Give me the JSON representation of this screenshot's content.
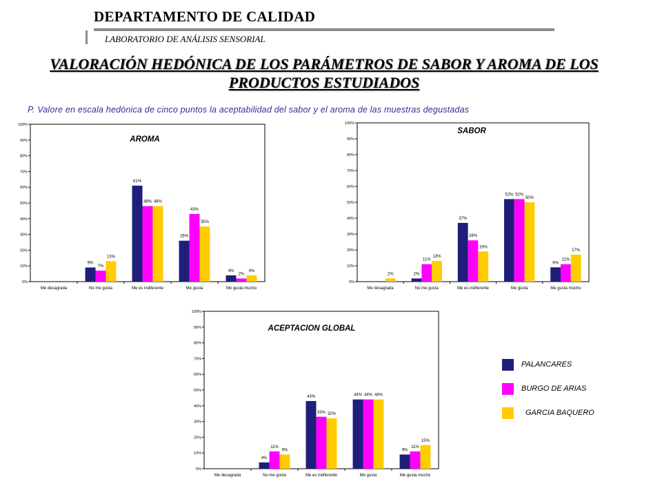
{
  "header": {
    "department": "DEPARTAMENTO DE CALIDAD",
    "laboratory": "LABORATORIO DE ANÁLISIS SENSORIAL"
  },
  "title": "VALORACIÓN HEDÓNICA DE LOS PARÁMETROS DE SABOR Y AROMA DE LOS PRODUCTOS ESTUDIADOS",
  "question": "P. Valore en escala hedónica de cinco puntos la aceptabilidad del sabor y el aroma de las muestras degustadas",
  "colors": {
    "palancares": "#1f1f7a",
    "burgo": "#ff00ff",
    "garcia": "#ffcc00",
    "grid": "#000000"
  },
  "legend": [
    {
      "label": "PALANCARES",
      "color": "#1f1f7a"
    },
    {
      "label": "BURGO DE ARIAS",
      "color": "#ff00ff"
    },
    {
      "label": "GARCIA BAQUERO",
      "color": "#ffcc00"
    }
  ],
  "chart_data": [
    {
      "type": "bar",
      "title": "AROMA",
      "categories": [
        "Me desagrada",
        "No me gusta",
        "Me es indiferente",
        "Me gusta",
        "Me gusta mucho"
      ],
      "yticks": [
        "0%",
        "10%",
        "20%",
        "30%",
        "40%",
        "50%",
        "60%",
        "70%",
        "80%",
        "90%",
        "100%"
      ],
      "ylim": [
        0,
        100
      ],
      "series": [
        {
          "name": "PALANCARES",
          "values": [
            0,
            9,
            61,
            26,
            4
          ],
          "labels": [
            "",
            "9%",
            "61%",
            "26%",
            "4%"
          ]
        },
        {
          "name": "BURGO DE ARIAS",
          "values": [
            0,
            7,
            48,
            43,
            2
          ],
          "labels": [
            "",
            "7%",
            "48%",
            "43%",
            "2%"
          ]
        },
        {
          "name": "GARCIA BAQUERO",
          "values": [
            0,
            13,
            48,
            35,
            4
          ],
          "labels": [
            "",
            "13%",
            "48%",
            "35%",
            "4%"
          ]
        }
      ]
    },
    {
      "type": "bar",
      "title": "SABOR",
      "categories": [
        "Me desagrada",
        "No me gusta",
        "Me es indiferente",
        "Me gusta",
        "Me gusta mucho"
      ],
      "yticks": [
        "0%",
        "10%",
        "20%",
        "30%",
        "40%",
        "50%",
        "60%",
        "70%",
        "80%",
        "90%",
        "100%"
      ],
      "ylim": [
        0,
        100
      ],
      "series": [
        {
          "name": "PALANCARES",
          "values": [
            0,
            2,
            37,
            52,
            9
          ],
          "labels": [
            "",
            "2%",
            "37%",
            "52%",
            "9%"
          ]
        },
        {
          "name": "BURGO DE ARIAS",
          "values": [
            0,
            11,
            26,
            52,
            11
          ],
          "labels": [
            "",
            "11%",
            "26%",
            "52%",
            "11%"
          ]
        },
        {
          "name": "GARCIA BAQUERO",
          "values": [
            2,
            13,
            19,
            50,
            17
          ],
          "labels": [
            "2%",
            "13%",
            "19%",
            "50%",
            "17%"
          ]
        }
      ]
    },
    {
      "type": "bar",
      "title": "ACEPTACION GLOBAL",
      "categories": [
        "Me desagrada",
        "No me gusta",
        "Me es indiferente",
        "Me gusta",
        "Me gusta mucho"
      ],
      "yticks": [
        "0%",
        "10%",
        "20%",
        "30%",
        "40%",
        "50%",
        "60%",
        "70%",
        "80%",
        "90%",
        "100%"
      ],
      "ylim": [
        0,
        100
      ],
      "series": [
        {
          "name": "PALANCARES",
          "values": [
            0,
            4,
            43,
            44,
            9
          ],
          "labels": [
            "",
            "4%",
            "43%",
            "44%",
            "9%"
          ]
        },
        {
          "name": "BURGO DE ARIAS",
          "values": [
            0,
            11,
            33,
            44,
            11
          ],
          "labels": [
            "",
            "11%",
            "33%",
            "44%",
            "11%"
          ]
        },
        {
          "name": "GARCIA BAQUERO",
          "values": [
            0,
            9,
            32,
            44,
            15
          ],
          "labels": [
            "",
            "9%",
            "32%",
            "44%",
            "15%"
          ]
        }
      ]
    }
  ]
}
